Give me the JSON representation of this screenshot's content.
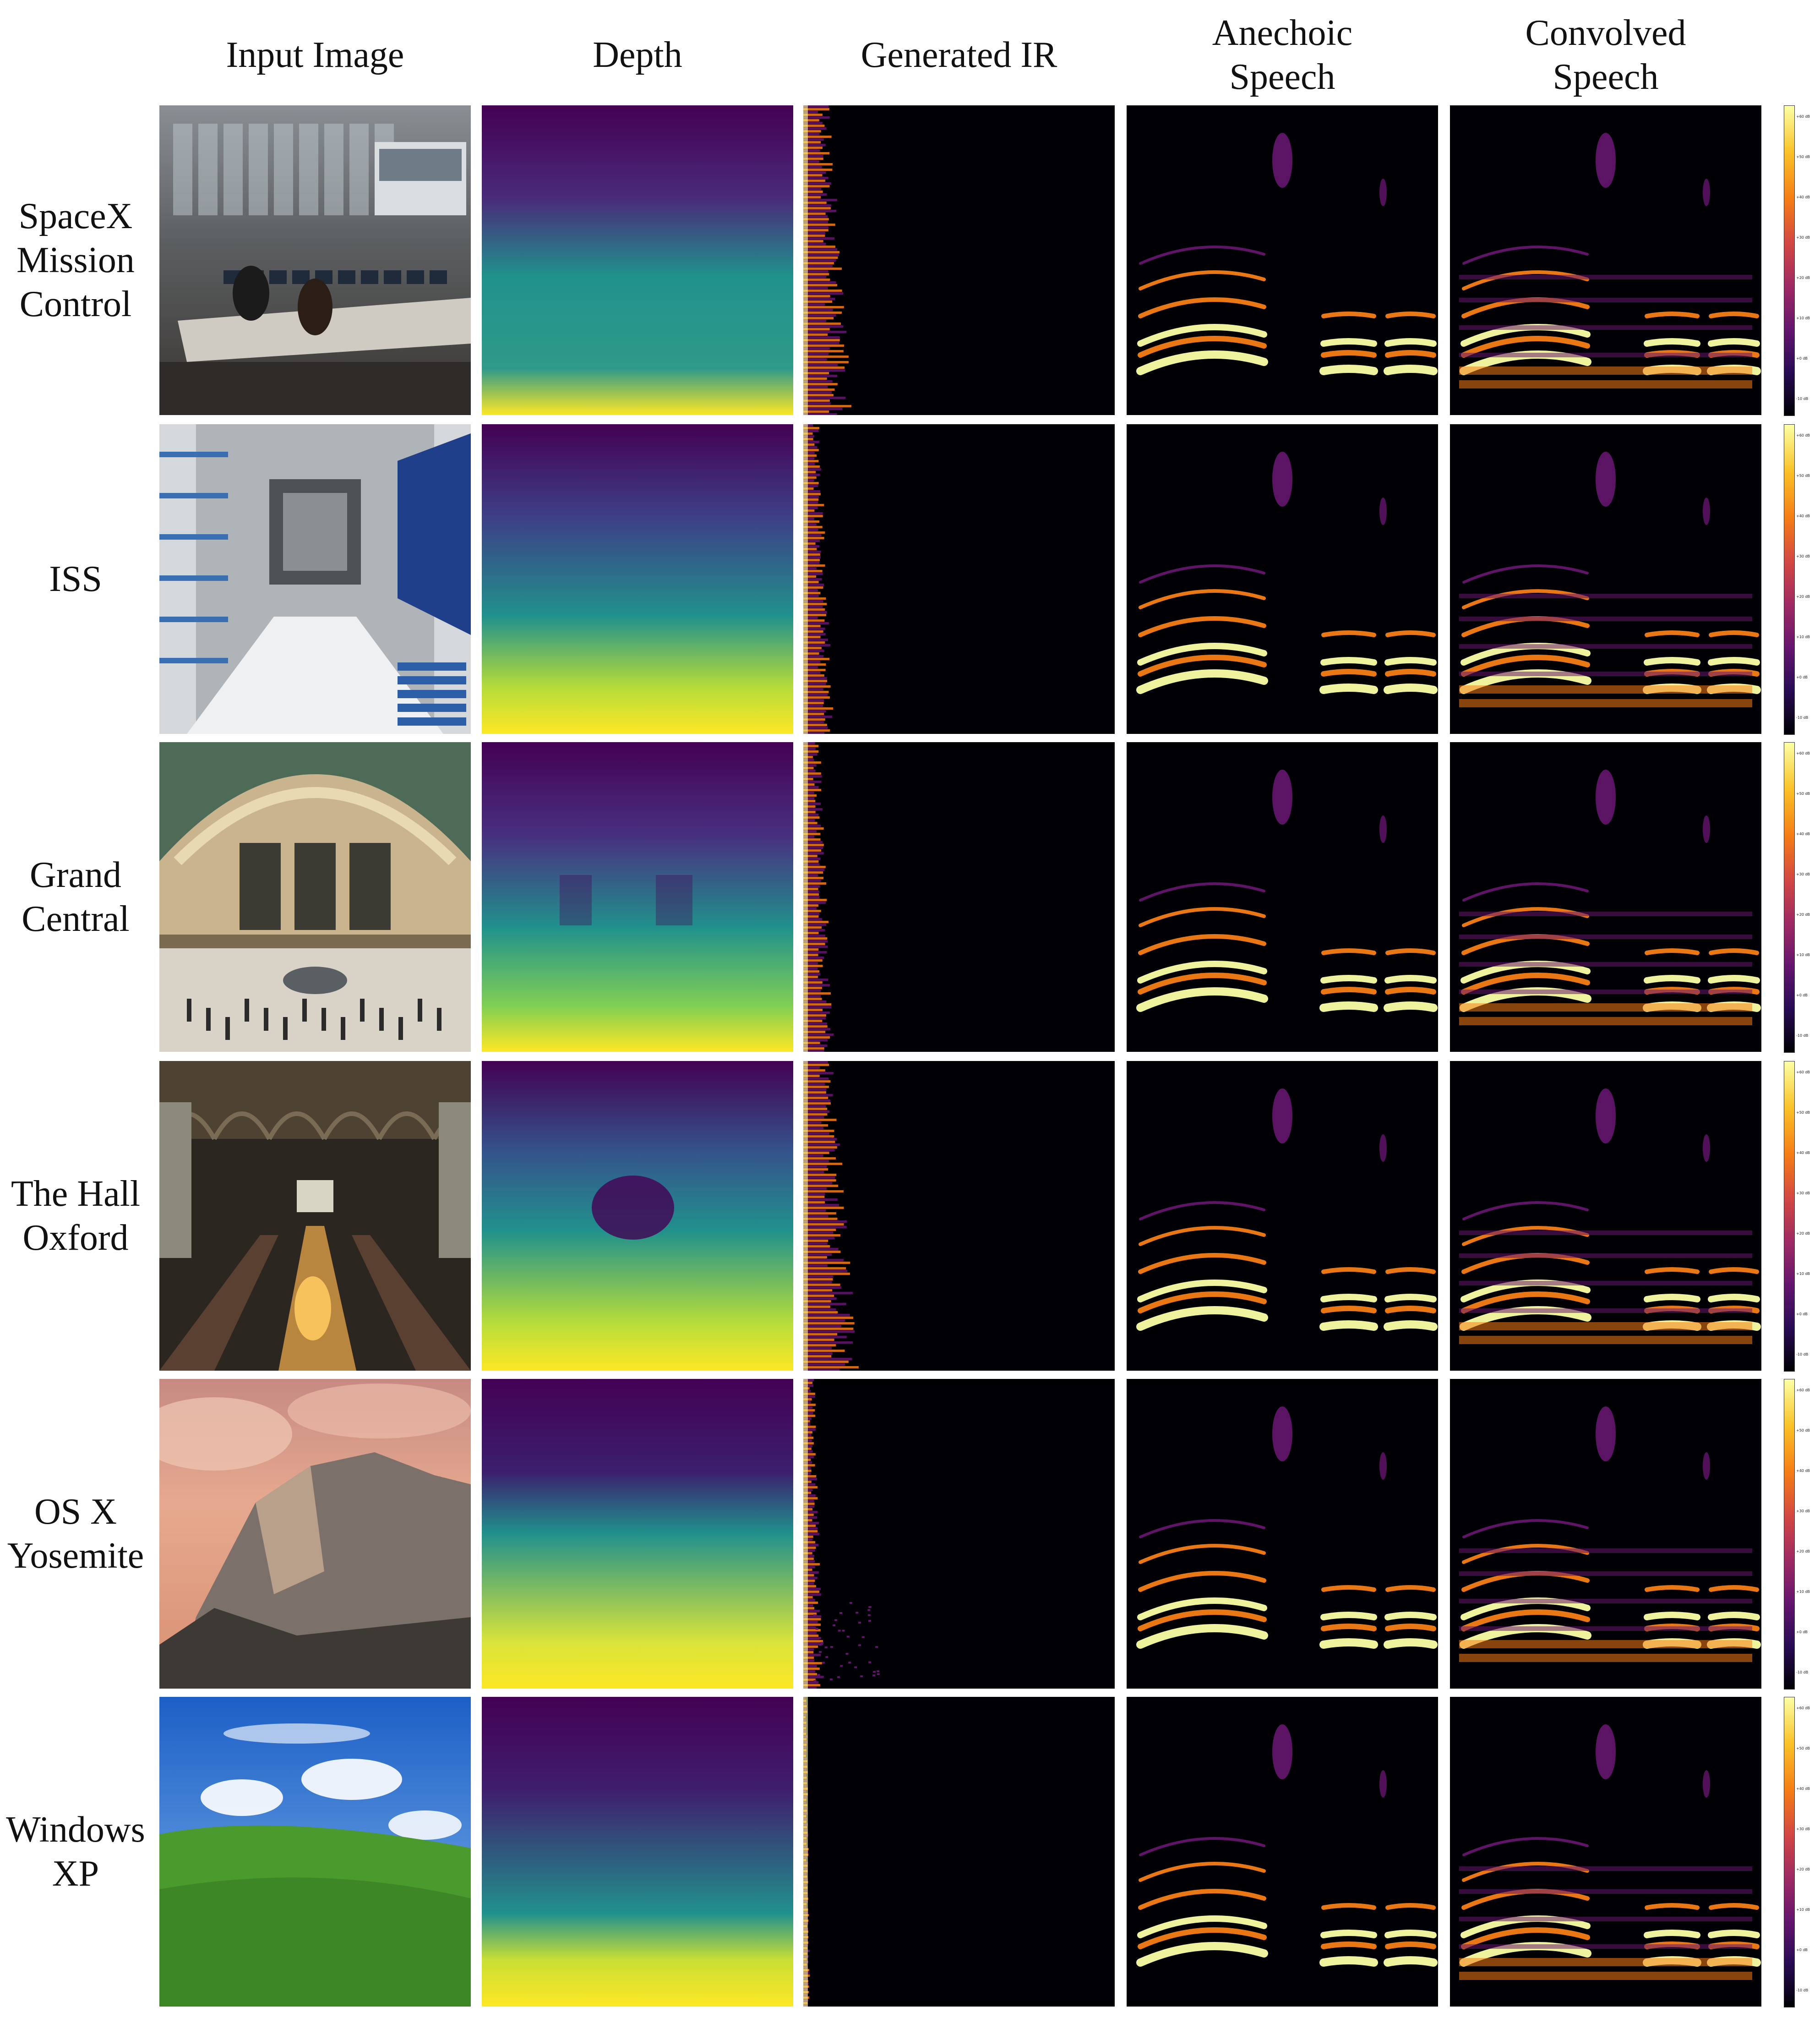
{
  "columns": [
    "Input Image",
    "Depth",
    "Generated IR",
    "Anechoic\nSpeech",
    "Convolved\nSpeech"
  ],
  "rows": [
    {
      "label": "SpaceX\nMission\nControl",
      "scene": "control-room"
    },
    {
      "label": "ISS",
      "scene": "space-station"
    },
    {
      "label": "Grand\nCentral",
      "scene": "train-hall"
    },
    {
      "label": "The Hall\nOxford",
      "scene": "dining-hall"
    },
    {
      "label": "OS X\nYosemite",
      "scene": "mountain"
    },
    {
      "label": "Windows\nXP",
      "scene": "green-hill"
    }
  ],
  "colorbar": {
    "ticks": [
      "+60 dB",
      "+50 dB",
      "+40 dB",
      "+30 dB",
      "+20 dB",
      "+10 dB",
      "+0 dB",
      "-10 dB"
    ],
    "colormap": "inferno"
  },
  "colors": {
    "depth_far": "#440154",
    "depth_mid": "#21918c",
    "depth_near": "#fde725",
    "spectrogram_bg": "#000004",
    "spectrogram_hot": "#fcffa4",
    "spectrogram_warm": "#f57d15",
    "spectrogram_cool": "#65156e"
  }
}
